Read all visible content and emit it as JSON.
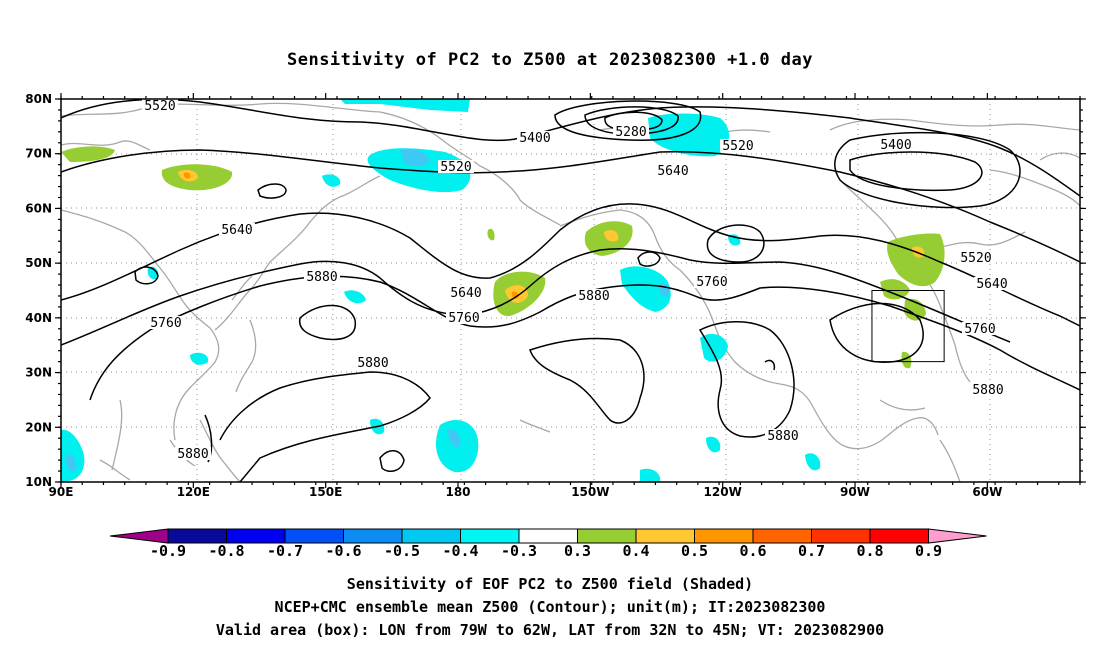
{
  "title": "Sensitivity of PC2 to Z500 at 2023082300 +1.0 day",
  "map": {
    "lat_ticks": [
      "80N",
      "70N",
      "60N",
      "50N",
      "40N",
      "30N",
      "20N",
      "10N"
    ],
    "lon_ticks": [
      "90E",
      "120E",
      "150E",
      "180",
      "150W",
      "120W",
      "90W",
      "60W"
    ],
    "contour_labels": [
      "5520",
      "5400",
      "5280",
      "5520",
      "5520",
      "5400",
      "5640",
      "5640",
      "5880",
      "5640",
      "5760",
      "5880",
      "5760",
      "5520",
      "5640",
      "5760",
      "5760",
      "5880",
      "5880",
      "5880",
      "5880"
    ],
    "valid_box": {
      "lon_min": -79,
      "lon_max": -62,
      "lat_min": 32,
      "lat_max": 45
    }
  },
  "colorbar": {
    "labels": [
      "-0.9",
      "-0.8",
      "-0.7",
      "-0.6",
      "-0.5",
      "-0.4",
      "-0.3",
      "0.3",
      "0.4",
      "0.5",
      "0.6",
      "0.7",
      "0.8",
      "0.9"
    ],
    "colors": [
      "#9e008a",
      "#0a0a9a",
      "#0000f0",
      "#0050f5",
      "#0a8cf0",
      "#00c8f0",
      "#00f5f5",
      "#ffffff",
      "#96cd32",
      "#ffc832",
      "#ff9600",
      "#ff6400",
      "#ff3200",
      "#ff0000",
      "#ff9dcf"
    ]
  },
  "shade_colors": {
    "cyan": "#00f0f0",
    "light_blue": "#40c8f5",
    "green": "#96cd32",
    "yellow": "#ffc832",
    "orange": "#ff9600"
  },
  "captions": {
    "line1": "Sensitivity of EOF PC2 to Z500 field (Shaded)",
    "line2": "NCEP+CMC ensemble mean Z500 (Contour); unit(m); IT:2023082300",
    "line3": "Valid area (box): LON from 79W to 62W, LAT from 32N to 45N; VT: 2023082900"
  }
}
